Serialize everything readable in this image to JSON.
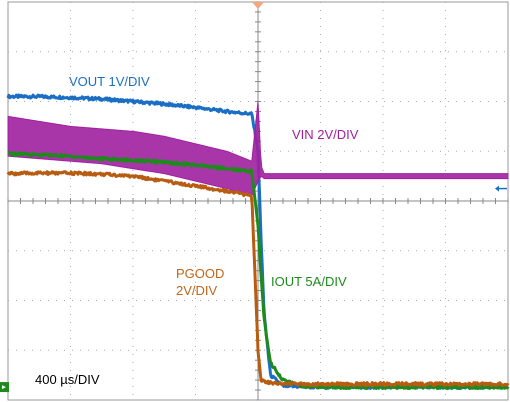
{
  "chart_data": {
    "type": "line",
    "title": "",
    "x_scale_label": "400 µs/DIV",
    "x": [
      0,
      0.5,
      1,
      1.5,
      2,
      2.5,
      3,
      3.5,
      3.9,
      4.0,
      4.05,
      4.1,
      4.2,
      4.4,
      4.7,
      5,
      5.5,
      6,
      6.5,
      7,
      7.5,
      8
    ],
    "x_unit": "div",
    "divisions": {
      "x": 8,
      "y": 8
    },
    "grid": true,
    "series": [
      {
        "name": "VOUT 1V/DIV",
        "color": "#1a6fc4",
        "values": [
          6.1,
          6.1,
          6.08,
          6.05,
          6.0,
          5.95,
          5.88,
          5.8,
          5.75,
          5.0,
          3.2,
          1.7,
          0.5,
          0.28,
          0.27,
          0.26,
          0.26,
          0.26,
          0.26,
          0.26,
          0.26,
          0.26
        ]
      },
      {
        "name": "VIN 2V/DIV",
        "color": "#a020a0",
        "envelope_upper": [
          5.7,
          5.6,
          5.5,
          5.45,
          5.4,
          5.3,
          5.15,
          5.0,
          4.8,
          6.0,
          4.7,
          4.55,
          4.55,
          4.55,
          4.55,
          4.55,
          4.55,
          4.55,
          4.55,
          4.55,
          4.55,
          4.55
        ],
        "envelope_lower": [
          4.9,
          4.85,
          4.8,
          4.75,
          4.65,
          4.55,
          4.4,
          4.25,
          4.1,
          4.4,
          4.5,
          4.45,
          4.45,
          4.45,
          4.45,
          4.45,
          4.45,
          4.45,
          4.45,
          4.45,
          4.45,
          4.45
        ]
      },
      {
        "name": "IOUT 5A/DIV",
        "color": "#1e8a1e",
        "values": [
          4.95,
          4.93,
          4.9,
          4.85,
          4.82,
          4.78,
          4.72,
          4.65,
          4.6,
          3.5,
          2.5,
          1.6,
          0.75,
          0.4,
          0.28,
          0.26,
          0.26,
          0.26,
          0.26,
          0.26,
          0.26,
          0.26
        ]
      },
      {
        "name": "PGOOD 2V/DIV",
        "color": "#b85c12",
        "values": [
          4.55,
          4.56,
          4.56,
          4.54,
          4.5,
          4.4,
          4.3,
          4.2,
          4.1,
          1.0,
          0.4,
          0.38,
          0.35,
          0.33,
          0.32,
          0.32,
          0.32,
          0.32,
          0.32,
          0.32,
          0.32,
          0.32
        ]
      }
    ]
  },
  "labels": {
    "vout": "VOUT 1V/DIV",
    "vin": "VIN 2V/DIV",
    "pgood_line1": "PGOOD",
    "pgood_line2": "2V/DIV",
    "iout": "IOUT 5A/DIV",
    "timebase": "400 µs/DIV"
  },
  "colors": {
    "grid": "#aaaaaa",
    "frame": "#999999",
    "trigger_marker": "#f5a57a",
    "level_marker_green": "#1e8a1e",
    "arrow_blue": "#1a6fc4"
  }
}
